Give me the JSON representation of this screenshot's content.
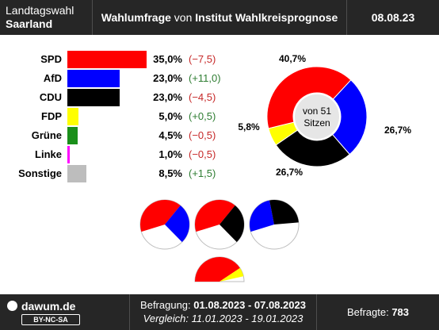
{
  "header": {
    "left_line1": "Landtagswahl",
    "left_line2": "Saarland",
    "center_bold1": "Wahlumfrage",
    "center_mid": " von ",
    "center_bold2": "Institut Wahlkreisprognose",
    "date": "08.08.23"
  },
  "chart_data": [
    {
      "type": "bar",
      "categories": [
        "SPD",
        "AfD",
        "CDU",
        "FDP",
        "Grüne",
        "Linke",
        "Sonstige"
      ],
      "values": [
        35.0,
        23.0,
        23.0,
        5.0,
        4.5,
        1.0,
        8.5
      ],
      "value_labels": [
        "35,0%",
        "23,0%",
        "23,0%",
        "5,0%",
        "4,5%",
        "1,0%",
        "8,5%"
      ],
      "changes": [
        -7.5,
        11.0,
        -4.5,
        0.5,
        -0.5,
        -0.5,
        1.5
      ],
      "change_labels": [
        "(−7,5)",
        "(+11,0)",
        "(−4,5)",
        "(+0,5)",
        "(−0,5)",
        "(−0,5)",
        "(+1,5)"
      ],
      "colors": [
        "#ff0000",
        "#0000ff",
        "#000000",
        "#ffff00",
        "#1a8f1a",
        "#ff00ff",
        "#bdbdbd"
      ]
    },
    {
      "type": "pie",
      "style": "donut",
      "center_text_line1": "von 51",
      "center_text_line2": "Sitzen",
      "slices": [
        {
          "party": "SPD",
          "share": 40.7,
          "label": "40,7%",
          "color": "#ff0000"
        },
        {
          "party": "AfD",
          "share": 26.7,
          "label": "26,7%",
          "color": "#0000ff"
        },
        {
          "party": "CDU",
          "share": 26.7,
          "label": "26,7%",
          "color": "#000000"
        },
        {
          "party": "FDP",
          "share": 5.8,
          "label": "5,8%",
          "color": "#ffff00"
        }
      ]
    },
    {
      "type": "pie",
      "style": "coalition-circles",
      "circles": [
        {
          "parties": [
            "SPD",
            "AfD"
          ],
          "shares": [
            40.7,
            26.7
          ],
          "colors": [
            "#ff0000",
            "#0000ff"
          ]
        },
        {
          "parties": [
            "SPD",
            "CDU"
          ],
          "shares": [
            40.7,
            26.7
          ],
          "colors": [
            "#ff0000",
            "#000000"
          ]
        },
        {
          "parties": [
            "AfD",
            "CDU"
          ],
          "shares": [
            26.7,
            26.7
          ],
          "colors": [
            "#0000ff",
            "#000000"
          ]
        }
      ]
    },
    {
      "type": "pie",
      "style": "coalition-half",
      "parties": [
        "SPD",
        "FDP"
      ],
      "shares": [
        40.7,
        5.8
      ],
      "colors": [
        "#ff0000",
        "#ffff00"
      ]
    }
  ],
  "footer": {
    "brand": "dawum.de",
    "license": "BY-NC-SA",
    "survey_label": "Befragung: ",
    "survey_dates": "01.08.2023 - 07.08.2023",
    "compare_label": "Vergleich: 11.01.2023 - 19.01.2023",
    "respondents_label": "Befragte: ",
    "respondents_value": "783"
  }
}
